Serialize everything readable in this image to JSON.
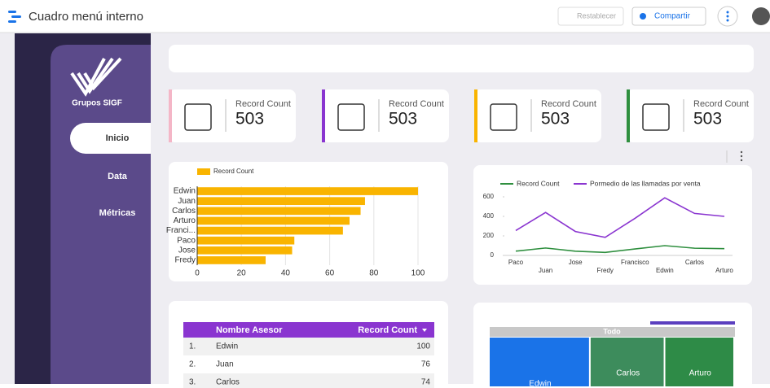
{
  "header": {
    "title": "Cuadro menú interno",
    "reset": "Restablecer",
    "share": "Compartir"
  },
  "sidebar": {
    "brand": "Grupos SIGF",
    "menu": [
      "Inicio",
      "Data",
      "Métricas"
    ]
  },
  "kpis": [
    {
      "label": "Record Count",
      "value": 503,
      "color": "#f4b6c7"
    },
    {
      "label": "Record Count",
      "value": 503,
      "color": "#8a35d0"
    },
    {
      "label": "Record Count",
      "value": 503,
      "color": "#f9b400"
    },
    {
      "label": "Record Count",
      "value": 503,
      "color": "#2f8f3f"
    }
  ],
  "chart_data": [
    {
      "type": "bar",
      "orientation": "horizontal",
      "legend": "Record Count",
      "color": "#f9b400",
      "categories": [
        "Edwin",
        "Juan",
        "Carlos",
        "Arturo",
        "Franci...",
        "Paco",
        "Jose",
        "Fredy"
      ],
      "values": [
        100,
        76,
        74,
        69,
        66,
        44,
        43,
        31
      ],
      "xlim": [
        0,
        100
      ],
      "xticks": [
        0,
        20,
        40,
        60,
        80,
        100
      ],
      "grid": true
    },
    {
      "type": "line",
      "categories": [
        "Paco",
        "Juan",
        "Jose",
        "Fredy",
        "Francisco",
        "Edwin",
        "Carlos",
        "Arturo"
      ],
      "series": [
        {
          "name": "Record Count",
          "color": "#2f8f3f",
          "values": [
            44,
            76,
            43,
            31,
            66,
            100,
            74,
            69
          ]
        },
        {
          "name": "Pormedio de las llamadas por venta",
          "color": "#8a35d0",
          "values": [
            255,
            440,
            245,
            185,
            380,
            590,
            430,
            400
          ]
        }
      ],
      "ylim": [
        0,
        700
      ],
      "yticks": [
        0,
        200,
        400,
        600
      ],
      "grid": false
    },
    {
      "type": "treemap",
      "root": "Todo",
      "categories": [
        "Edwin",
        "Carlos",
        "Arturo"
      ],
      "values": [
        100,
        74,
        69
      ],
      "colors": [
        "#1a73e8",
        "#3d8c5c",
        "#2e8b47"
      ]
    }
  ],
  "table": {
    "columns": [
      "Nombre Asesor",
      "Record Count"
    ],
    "rows": [
      [
        "1.",
        "Edwin",
        100
      ],
      [
        "2.",
        "Juan",
        76
      ],
      [
        "3.",
        "Carlos",
        74
      ]
    ]
  }
}
